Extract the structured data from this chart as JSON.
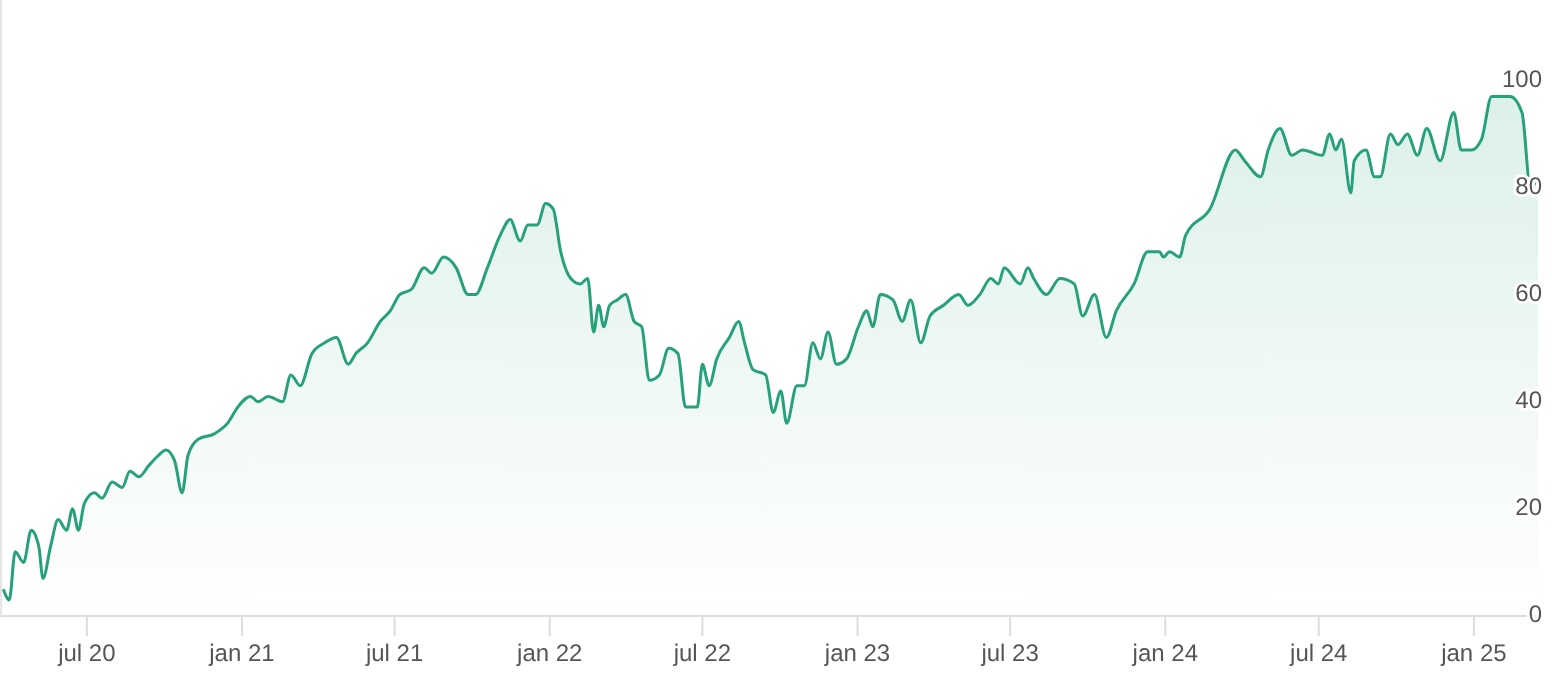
{
  "chart_data": {
    "type": "area",
    "color": "#27a17c",
    "grid": false,
    "legend": false,
    "marker": "none",
    "x": [
      "2020-03-24",
      "2020-03-31",
      "2020-04-07",
      "2020-04-17",
      "2020-04-26",
      "2020-05-05",
      "2020-05-10",
      "2020-05-19",
      "2020-05-28",
      "2020-06-07",
      "2020-06-14",
      "2020-06-21",
      "2020-06-28",
      "2020-07-10",
      "2020-07-19",
      "2020-07-31",
      "2020-08-12",
      "2020-08-21",
      "2020-09-01",
      "2020-09-12",
      "2020-09-24",
      "2020-10-03",
      "2020-10-13",
      "2020-10-22",
      "2020-10-29",
      "2020-11-10",
      "2020-11-29",
      "2020-12-15",
      "2020-12-27",
      "2021-01-11",
      "2021-01-20",
      "2021-02-01",
      "2021-02-18",
      "2021-02-28",
      "2021-03-11",
      "2021-03-25",
      "2021-04-09",
      "2021-04-23",
      "2021-05-07",
      "2021-05-16",
      "2021-05-30",
      "2021-06-14",
      "2021-06-26",
      "2021-07-07",
      "2021-07-21",
      "2021-08-05",
      "2021-08-14",
      "2021-08-28",
      "2021-09-12",
      "2021-09-26",
      "2021-10-05",
      "2021-10-19",
      "2021-11-03",
      "2021-11-15",
      "2021-11-27",
      "2021-12-06",
      "2021-12-17",
      "2021-12-27",
      "2022-01-05",
      "2022-01-14",
      "2022-01-26",
      "2022-02-06",
      "2022-02-15",
      "2022-02-22",
      "2022-02-28",
      "2022-03-06",
      "2022-03-13",
      "2022-03-22",
      "2022-04-01",
      "2022-04-11",
      "2022-04-20",
      "2022-04-29",
      "2022-05-11",
      "2022-05-22",
      "2022-06-02",
      "2022-06-11",
      "2022-06-25",
      "2022-07-01",
      "2022-07-09",
      "2022-07-18",
      "2022-08-02",
      "2022-08-13",
      "2022-08-20",
      "2022-08-30",
      "2022-09-14",
      "2022-09-23",
      "2022-10-02",
      "2022-10-09",
      "2022-10-21",
      "2022-10-30",
      "2022-11-09",
      "2022-11-18",
      "2022-11-27",
      "2022-12-07",
      "2022-12-19",
      "2023-01-02",
      "2023-01-12",
      "2023-01-19",
      "2023-01-28",
      "2023-02-12",
      "2023-02-23",
      "2023-03-05",
      "2023-03-17",
      "2023-03-28",
      "2023-04-13",
      "2023-05-01",
      "2023-05-12",
      "2023-05-26",
      "2023-06-08",
      "2023-06-17",
      "2023-06-24",
      "2023-07-13",
      "2023-07-22",
      "2023-07-29",
      "2023-08-13",
      "2023-08-29",
      "2023-09-15",
      "2023-09-25",
      "2023-10-09",
      "2023-10-23",
      "2023-11-04",
      "2023-11-25",
      "2023-12-11",
      "2023-12-25",
      "2023-12-30",
      "2024-01-06",
      "2024-01-18",
      "2024-01-25",
      "2024-02-23",
      "2024-03-24",
      "2024-04-04",
      "2024-04-23",
      "2024-05-02",
      "2024-05-16",
      "2024-05-30",
      "2024-06-12",
      "2024-07-05",
      "2024-07-14",
      "2024-07-21",
      "2024-07-28",
      "2024-08-08",
      "2024-08-12",
      "2024-08-26",
      "2024-09-05",
      "2024-09-12",
      "2024-09-24",
      "2024-10-03",
      "2024-10-14",
      "2024-10-26",
      "2024-11-06",
      "2024-11-22",
      "2024-12-08",
      "2024-12-17",
      "2024-12-29",
      "2025-01-10",
      "2025-01-22",
      "2025-02-04",
      "2025-02-13",
      "2025-02-27",
      "2025-03-09",
      "2025-03-18"
    ],
    "values": [
      5,
      3,
      12,
      10,
      16,
      13,
      7,
      13,
      18,
      16,
      20,
      16,
      21,
      23,
      22,
      25,
      24,
      27,
      26,
      28,
      30,
      31,
      29,
      23,
      30,
      33,
      34,
      36,
      39,
      41,
      40,
      41,
      40,
      45,
      43,
      49,
      51,
      52,
      47,
      49,
      51,
      55,
      57,
      60,
      61,
      65,
      64,
      67,
      65,
      60,
      60,
      65,
      71,
      74,
      70,
      73,
      73,
      77,
      76,
      68,
      63,
      62,
      63,
      53,
      58,
      54,
      58,
      59,
      60,
      55,
      54,
      44,
      45,
      50,
      49,
      39,
      39,
      47,
      43,
      48,
      52,
      55,
      51,
      46,
      45,
      38,
      42,
      36,
      43,
      43,
      51,
      48,
      53,
      47,
      48,
      54,
      57,
      54,
      60,
      59,
      55,
      59,
      51,
      56,
      58,
      60,
      58,
      60,
      63,
      62,
      65,
      62,
      65,
      63,
      60,
      63,
      62,
      56,
      60,
      52,
      57,
      62,
      68,
      68,
      67,
      68,
      67,
      71,
      76,
      87,
      85,
      82,
      87,
      91,
      86,
      87,
      86,
      90,
      87,
      89,
      79,
      85,
      87,
      82,
      82,
      90,
      88,
      90,
      86,
      91,
      85,
      94,
      87,
      87,
      89,
      97,
      97,
      97,
      94,
      80,
      82
    ],
    "xlim": [
      "2020-03-20",
      "2025-03-18"
    ],
    "xticks": [
      {
        "value": "2020-07-01",
        "label": "jul 20"
      },
      {
        "value": "2021-01-01",
        "label": "jan 21"
      },
      {
        "value": "2021-07-01",
        "label": "jul 21"
      },
      {
        "value": "2022-01-01",
        "label": "jan 22"
      },
      {
        "value": "2022-07-01",
        "label": "jul 22"
      },
      {
        "value": "2023-01-01",
        "label": "jan 23"
      },
      {
        "value": "2023-07-01",
        "label": "jul 23"
      },
      {
        "value": "2024-01-01",
        "label": "jan 24"
      },
      {
        "value": "2024-07-01",
        "label": "jul 24"
      },
      {
        "value": "2025-01-01",
        "label": "jan 25"
      }
    ],
    "ylim": [
      0,
      115
    ],
    "yticks": [
      0,
      20,
      40,
      60,
      80,
      100
    ]
  }
}
